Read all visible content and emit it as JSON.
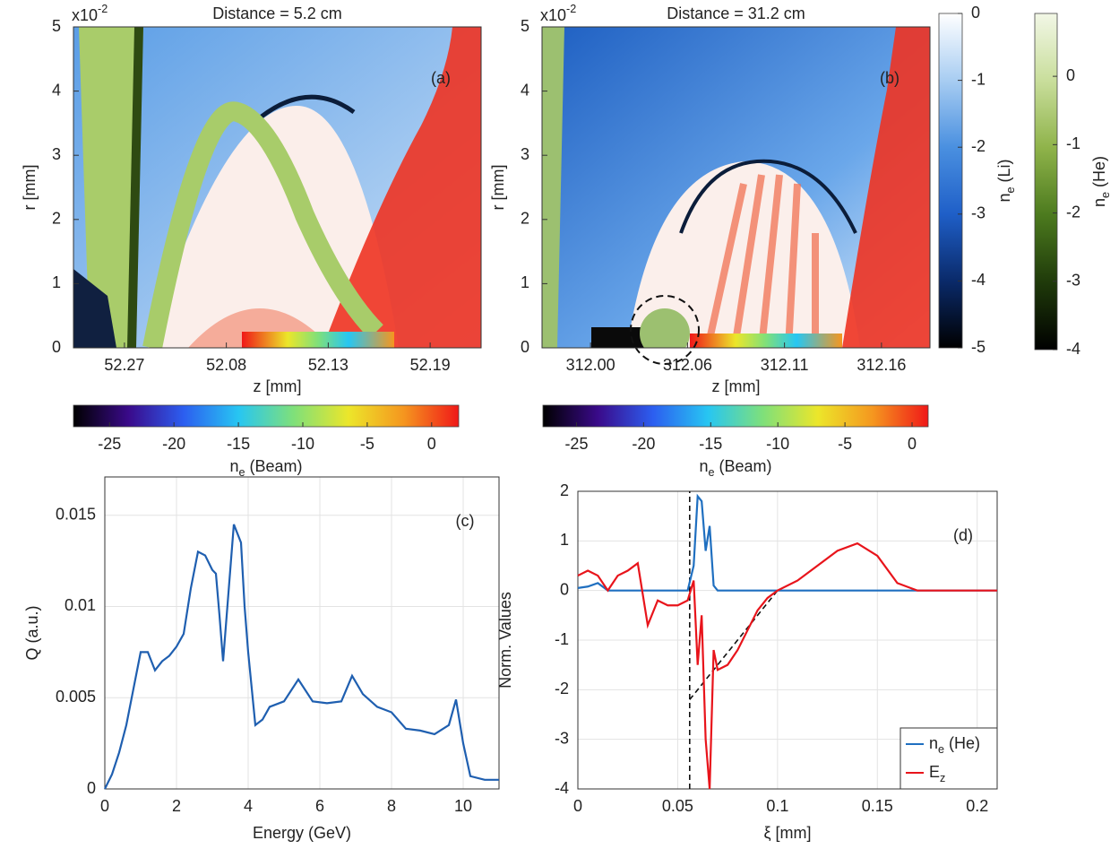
{
  "chart_data": [
    {
      "type": "heatmap",
      "panel": "(a)",
      "title": "Distance = 5.2 cm",
      "scale_note": {
        "base": "x10",
        "sup": "-2"
      },
      "xlabel": "z [mm]",
      "ylabel": "r [mm]",
      "categories": [
        "52.27",
        "52.08",
        "52.13",
        "52.19"
      ],
      "ylim": [
        0,
        5
      ],
      "yticks": [
        0,
        1,
        2,
        3,
        4,
        5
      ],
      "colorbars": [
        {
          "orientation": "horizontal",
          "label": {
            "base": "n",
            "sub": "e",
            "rest": " (Beam)"
          },
          "clim": [
            -27.8,
            2.1
          ],
          "ticks": [
            -25,
            -20,
            -15,
            -10,
            -5,
            0
          ],
          "colors": [
            "#000000",
            "#3a0a8a",
            "#2c5ef0",
            "#27c6f2",
            "#7fe07a",
            "#ece62a",
            "#f5961f",
            "#f01818"
          ]
        }
      ]
    },
    {
      "type": "heatmap",
      "panel": "(b)",
      "title": "Distance = 31.2 cm",
      "scale_note": {
        "base": "x10",
        "sup": "-2"
      },
      "xlabel": "z [mm]",
      "ylabel": "r [mm]",
      "categories": [
        "312.00",
        "312.06",
        "312.11",
        "312.16"
      ],
      "ylim": [
        0,
        5
      ],
      "yticks": [
        0,
        1,
        2,
        3,
        4,
        5
      ],
      "colorbars": [
        {
          "orientation": "horizontal",
          "label": {
            "base": "n",
            "sub": "e",
            "rest": " (Beam)"
          },
          "clim": [
            -27.5,
            1.2
          ],
          "ticks": [
            -25,
            -20,
            -15,
            -10,
            -5,
            0
          ],
          "colors": [
            "#000000",
            "#3a0a8a",
            "#2c5ef0",
            "#27c6f2",
            "#7fe07a",
            "#ece62a",
            "#f5961f",
            "#f01818"
          ]
        },
        {
          "orientation": "vertical",
          "label": {
            "base": "n",
            "sub": "e",
            "rest": " (Li)"
          },
          "clim": [
            -5,
            0
          ],
          "ticks": [
            0,
            -1,
            -2,
            -3,
            -4,
            -5
          ],
          "colors": [
            "#000000",
            "#0a2a6a",
            "#1f5fc8",
            "#4a90e0",
            "#a8cdf2",
            "#ffffff"
          ]
        },
        {
          "orientation": "vertical",
          "label": {
            "base": "n",
            "sub": "e",
            "rest": " (He)"
          },
          "clim": [
            -4,
            0.92
          ],
          "ticks": [
            0,
            -1,
            -2,
            -3,
            -4
          ],
          "colors": [
            "#000000",
            "#1f3a0a",
            "#4c7a1e",
            "#8fb34a",
            "#c9de9c",
            "#f2f7e6"
          ]
        }
      ]
    },
    {
      "type": "line",
      "panel": "(c)",
      "xlabel": "Energy (GeV)",
      "ylabel": "Q (a.u.)",
      "grid": true,
      "xlim": [
        0,
        11
      ],
      "xticks": [
        0,
        2,
        4,
        6,
        8,
        10
      ],
      "ylim": [
        0,
        0.0171
      ],
      "yticks": [
        0,
        0.005,
        0.01,
        0.015
      ],
      "x": [
        0,
        0.2,
        0.4,
        0.6,
        0.8,
        1.0,
        1.2,
        1.4,
        1.6,
        1.8,
        2.0,
        2.2,
        2.4,
        2.6,
        2.8,
        3.0,
        3.1,
        3.2,
        3.3,
        3.4,
        3.6,
        3.8,
        3.9,
        4.0,
        4.2,
        4.4,
        4.6,
        5.0,
        5.4,
        5.8,
        6.2,
        6.6,
        6.9,
        7.2,
        7.6,
        8.0,
        8.4,
        8.8,
        9.2,
        9.6,
        9.8,
        10.0,
        10.2,
        10.6,
        11.0
      ],
      "series": [
        {
          "color": "#1f5fb0",
          "values": [
            0,
            0.0008,
            0.002,
            0.0035,
            0.0055,
            0.0075,
            0.0075,
            0.0065,
            0.007,
            0.0073,
            0.0078,
            0.0085,
            0.011,
            0.013,
            0.0128,
            0.012,
            0.0118,
            0.0095,
            0.007,
            0.0095,
            0.0145,
            0.0135,
            0.01,
            0.0075,
            0.0035,
            0.0038,
            0.0045,
            0.0048,
            0.006,
            0.0048,
            0.0047,
            0.0048,
            0.0062,
            0.0052,
            0.0045,
            0.0042,
            0.0033,
            0.0032,
            0.003,
            0.0035,
            0.0049,
            0.0025,
            0.0007,
            0.0005,
            0.0005
          ]
        }
      ]
    },
    {
      "type": "line",
      "panel": "(d)",
      "xlabel": "ξ [mm]",
      "ylabel": "Norm. Values",
      "grid": true,
      "legend": "lower right",
      "xlim": [
        0,
        0.21
      ],
      "xticks": [
        0,
        0.05,
        0.1,
        0.15,
        0.2
      ],
      "ylim": [
        -4,
        2
      ],
      "yticks": [
        -4,
        -3,
        -2,
        -1,
        0,
        1,
        2
      ],
      "x": [
        0,
        0.005,
        0.01,
        0.015,
        0.02,
        0.025,
        0.03,
        0.035,
        0.04,
        0.045,
        0.05,
        0.055,
        0.058,
        0.06,
        0.062,
        0.064,
        0.066,
        0.068,
        0.07,
        0.075,
        0.08,
        0.085,
        0.09,
        0.095,
        0.1,
        0.11,
        0.12,
        0.13,
        0.14,
        0.15,
        0.16,
        0.17,
        0.18,
        0.19,
        0.2,
        0.21
      ],
      "series": [
        {
          "name": {
            "base": "n",
            "sub": "e",
            "rest": " (He)"
          },
          "color": "#1f6fc0",
          "values": [
            0.05,
            0.08,
            0.15,
            0,
            0,
            0,
            0,
            0,
            0,
            0,
            0,
            0,
            0.5,
            1.9,
            1.8,
            0.8,
            1.3,
            0.1,
            0,
            0,
            0,
            0,
            0,
            0,
            0,
            0,
            0,
            0,
            0,
            0,
            0,
            0,
            0,
            0,
            0,
            0
          ]
        },
        {
          "name": {
            "base": "E",
            "sub": "z"
          },
          "color": "#e8141b",
          "values": [
            0.3,
            0.4,
            0.3,
            0,
            0.3,
            0.4,
            0.55,
            -0.7,
            -0.2,
            -0.3,
            -0.3,
            -0.2,
            0.2,
            -1.5,
            -0.5,
            -3,
            -4,
            -1.2,
            -1.6,
            -1.5,
            -1.2,
            -0.8,
            -0.4,
            -0.15,
            0,
            0.2,
            0.5,
            0.8,
            0.95,
            0.7,
            0.15,
            0,
            0,
            0,
            0,
            0
          ]
        }
      ],
      "reference_lines": [
        {
          "x": [
            0.056,
            0.056
          ],
          "y": [
            -4,
            2
          ]
        },
        {
          "x": [
            0.056,
            0.1
          ],
          "y": [
            -2.2,
            0
          ]
        }
      ]
    }
  ]
}
